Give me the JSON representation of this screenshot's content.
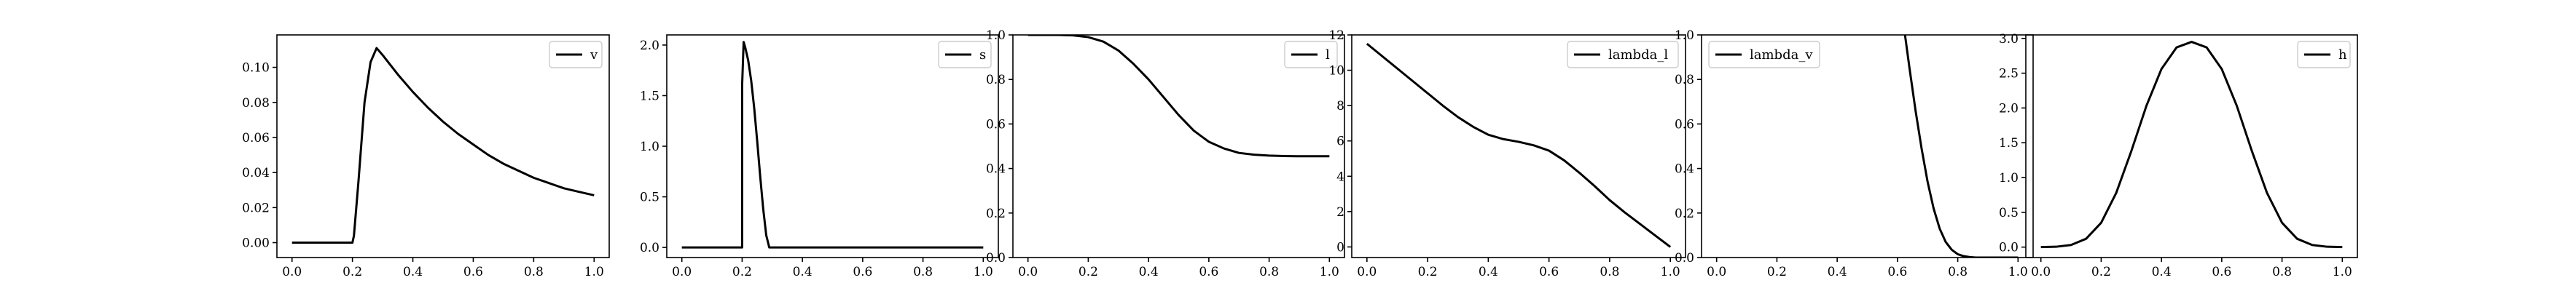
{
  "chart_data": [
    {
      "type": "line",
      "xlim": [
        -0.05,
        1.05
      ],
      "ylim": [
        -0.0085,
        0.1185
      ],
      "xticks": [
        0.0,
        0.2,
        0.4,
        0.6,
        0.8,
        1.0
      ],
      "xtick_labels": [
        "0.0",
        "0.2",
        "0.4",
        "0.6",
        "0.8",
        "1.0"
      ],
      "yticks": [
        0.0,
        0.02,
        0.04,
        0.06,
        0.08,
        0.1
      ],
      "ytick_labels": [
        "0.00",
        "0.02",
        "0.04",
        "0.06",
        "0.08",
        "0.10"
      ],
      "legend_placement": "top-right",
      "grid": false,
      "series": [
        {
          "name": "v",
          "x": [
            0.0,
            0.1,
            0.2,
            0.205,
            0.22,
            0.24,
            0.26,
            0.28,
            0.3,
            0.35,
            0.4,
            0.45,
            0.5,
            0.55,
            0.6,
            0.65,
            0.7,
            0.75,
            0.8,
            0.85,
            0.9,
            0.95,
            1.0
          ],
          "y": [
            0.0,
            0.0,
            0.0,
            0.004,
            0.035,
            0.08,
            0.103,
            0.111,
            0.107,
            0.096,
            0.086,
            0.077,
            0.069,
            0.062,
            0.056,
            0.05,
            0.045,
            0.041,
            0.037,
            0.034,
            0.031,
            0.029,
            0.027
          ]
        }
      ]
    },
    {
      "type": "line",
      "xlim": [
        -0.05,
        1.05
      ],
      "ylim": [
        -0.1,
        2.1
      ],
      "xticks": [
        0.0,
        0.2,
        0.4,
        0.6,
        0.8,
        1.0
      ],
      "xtick_labels": [
        "0.0",
        "0.2",
        "0.4",
        "0.6",
        "0.8",
        "1.0"
      ],
      "yticks": [
        0.0,
        0.5,
        1.0,
        1.5,
        2.0
      ],
      "ytick_labels": [
        "0.0",
        "0.5",
        "1.0",
        "1.5",
        "2.0"
      ],
      "legend_placement": "top-right",
      "grid": false,
      "series": [
        {
          "name": "s",
          "x": [
            0.0,
            0.1,
            0.2,
            0.2,
            0.205,
            0.21,
            0.22,
            0.23,
            0.24,
            0.25,
            0.26,
            0.27,
            0.28,
            0.29,
            0.3,
            0.5,
            0.8,
            1.0
          ],
          "y": [
            0.0,
            0.0,
            0.0,
            1.6,
            2.03,
            1.98,
            1.85,
            1.65,
            1.38,
            1.05,
            0.7,
            0.38,
            0.12,
            0.0,
            0.0,
            0.0,
            0.0,
            0.0
          ]
        }
      ]
    },
    {
      "type": "line",
      "xlim": [
        -0.05,
        1.05
      ],
      "ylim": [
        0.0,
        1.0
      ],
      "xticks": [
        0.0,
        0.2,
        0.4,
        0.6,
        0.8,
        1.0
      ],
      "xtick_labels": [
        "0.0",
        "0.2",
        "0.4",
        "0.6",
        "0.8",
        "1.0"
      ],
      "yticks": [
        0.0,
        0.2,
        0.4,
        0.6,
        0.8,
        1.0
      ],
      "ytick_labels": [
        "0.0",
        "0.2",
        "0.4",
        "0.6",
        "0.8",
        "1.0"
      ],
      "legend_placement": "top-right",
      "grid": false,
      "series": [
        {
          "name": "l",
          "x": [
            0.0,
            0.1,
            0.15,
            0.2,
            0.25,
            0.3,
            0.35,
            0.4,
            0.45,
            0.5,
            0.55,
            0.6,
            0.65,
            0.7,
            0.75,
            0.8,
            0.85,
            0.9,
            0.95,
            1.0
          ],
          "y": [
            1.0,
            1.0,
            0.998,
            0.99,
            0.97,
            0.93,
            0.87,
            0.8,
            0.72,
            0.64,
            0.57,
            0.52,
            0.49,
            0.47,
            0.462,
            0.458,
            0.456,
            0.455,
            0.455,
            0.455
          ]
        }
      ]
    },
    {
      "type": "line",
      "xlim": [
        -0.05,
        1.05
      ],
      "ylim": [
        -0.6,
        12.0
      ],
      "xticks": [
        0.0,
        0.2,
        0.4,
        0.6,
        0.8,
        1.0
      ],
      "xtick_labels": [
        "0.0",
        "0.2",
        "0.4",
        "0.6",
        "0.8",
        "1.0"
      ],
      "yticks": [
        0,
        2,
        4,
        6,
        8,
        10,
        12
      ],
      "ytick_labels": [
        "0",
        "2",
        "4",
        "6",
        "8",
        "10",
        "12"
      ],
      "legend_placement": "top-right",
      "grid": false,
      "series": [
        {
          "name": "lambda_l",
          "x": [
            0.0,
            0.05,
            0.1,
            0.15,
            0.2,
            0.25,
            0.3,
            0.35,
            0.4,
            0.45,
            0.5,
            0.55,
            0.6,
            0.65,
            0.7,
            0.75,
            0.8,
            0.85,
            0.9,
            0.95,
            1.0
          ],
          "y": [
            11.5,
            10.8,
            10.1,
            9.4,
            8.7,
            8.0,
            7.35,
            6.8,
            6.35,
            6.1,
            5.95,
            5.75,
            5.45,
            4.9,
            4.2,
            3.45,
            2.65,
            1.95,
            1.3,
            0.65,
            0.0
          ]
        }
      ]
    },
    {
      "type": "line",
      "xlim": [
        -0.05,
        1.05
      ],
      "ylim": [
        0.0,
        1.0
      ],
      "xticks": [
        0.0,
        0.2,
        0.4,
        0.6,
        0.8,
        1.0
      ],
      "xtick_labels": [
        "0.0",
        "0.2",
        "0.4",
        "0.6",
        "0.8",
        "1.0"
      ],
      "yticks": [
        0.0,
        0.2,
        0.4,
        0.6,
        0.8,
        1.0
      ],
      "ytick_labels": [
        "0.0",
        "0.2",
        "0.4",
        "0.6",
        "0.8",
        "1.0"
      ],
      "legend_placement": "top-left",
      "grid": false,
      "series": [
        {
          "name": "lambda_v",
          "x": [
            0.625,
            0.64,
            0.66,
            0.68,
            0.7,
            0.72,
            0.74,
            0.76,
            0.78,
            0.8,
            0.82,
            0.84,
            0.86,
            0.9,
            0.95,
            1.0
          ],
          "y": [
            1.0,
            0.85,
            0.66,
            0.49,
            0.34,
            0.22,
            0.13,
            0.07,
            0.035,
            0.015,
            0.006,
            0.002,
            0.0,
            0.0,
            0.0,
            0.0
          ]
        }
      ]
    },
    {
      "type": "line",
      "xlim": [
        -0.05,
        1.05
      ],
      "ylim": [
        -0.15,
        3.05
      ],
      "xticks": [
        0.0,
        0.2,
        0.4,
        0.6,
        0.8,
        1.0
      ],
      "xtick_labels": [
        "0.0",
        "0.2",
        "0.4",
        "0.6",
        "0.8",
        "1.0"
      ],
      "yticks": [
        0.0,
        0.5,
        1.0,
        1.5,
        2.0,
        2.5,
        3.0
      ],
      "ytick_labels": [
        "0.0",
        "0.5",
        "1.0",
        "1.5",
        "2.0",
        "2.5",
        "3.0"
      ],
      "legend_placement": "top-right",
      "grid": false,
      "series": [
        {
          "name": "h",
          "x": [
            0.0,
            0.05,
            0.1,
            0.15,
            0.2,
            0.25,
            0.3,
            0.35,
            0.4,
            0.45,
            0.5,
            0.55,
            0.6,
            0.65,
            0.7,
            0.75,
            0.8,
            0.85,
            0.9,
            0.95,
            1.0
          ],
          "y": [
            0.0,
            0.005,
            0.03,
            0.12,
            0.35,
            0.78,
            1.38,
            2.03,
            2.56,
            2.87,
            2.95,
            2.87,
            2.56,
            2.03,
            1.38,
            0.78,
            0.35,
            0.12,
            0.03,
            0.005,
            0.0
          ]
        }
      ]
    }
  ]
}
